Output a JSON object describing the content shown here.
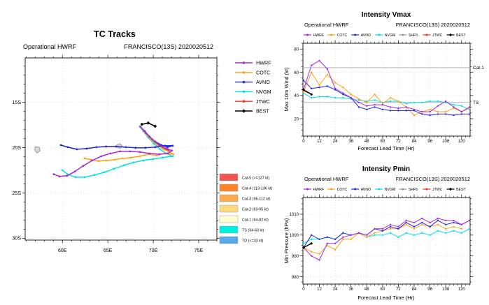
{
  "map": {
    "title": "TC Tracks",
    "subtitle_left": "Operational HWRF",
    "subtitle_right": "FRANCISCO(13S) 2020020512",
    "xlim": [
      55.9,
      77.0
    ],
    "ylim": [
      -30.2,
      -10.1
    ],
    "xticks": [
      {
        "v": 60,
        "label": "60E"
      },
      {
        "v": 65,
        "label": "65E"
      },
      {
        "v": 70,
        "label": "70E"
      },
      {
        "v": 75,
        "label": "75E"
      }
    ],
    "yticks": [
      {
        "v": -15,
        "label": "15S"
      },
      {
        "v": -20,
        "label": "20S"
      },
      {
        "v": -25,
        "label": "25S"
      },
      {
        "v": -30,
        "label": "30S"
      }
    ],
    "legend": [
      {
        "name": "HWRF",
        "color": "#a32cdb"
      },
      {
        "name": "COTC",
        "color": "#ffa217"
      },
      {
        "name": "AVNO",
        "color": "#2525dd"
      },
      {
        "name": "NVGM",
        "color": "#00e0e8"
      },
      {
        "name": "JTWC",
        "color": "#ee3224"
      },
      {
        "name": "BEST",
        "color": "#000000"
      }
    ],
    "categories": [
      {
        "label": "Cat-5 (>=137 kt)",
        "color": "#f2544e"
      },
      {
        "label": "Cat-4 (113-136 kt)",
        "color": "#ff8229"
      },
      {
        "label": "Cat-3 (96-112 kt)",
        "color": "#ffa94e"
      },
      {
        "label": "Cat-2 (83-95 kt)",
        "color": "#fdd87d"
      },
      {
        "label": "Cat-1 (64-82 kt)",
        "color": "#ffffcf"
      },
      {
        "label": "TS (34-63 kt)",
        "color": "#00f0e0"
      },
      {
        "label": "TD (<=33 kt)",
        "color": "#55aaee"
      }
    ],
    "islands": [
      {
        "name": "mauritius",
        "points": [
          [
            57.0,
            -19.9
          ],
          [
            57.45,
            -19.95
          ],
          [
            57.55,
            -20.35
          ],
          [
            57.2,
            -20.6
          ],
          [
            56.95,
            -20.25
          ]
        ]
      },
      {
        "name": "shoal",
        "points": [
          [
            66.0,
            -19.7
          ],
          [
            66.35,
            -19.55
          ],
          [
            66.6,
            -19.85
          ],
          [
            66.35,
            -20.1
          ],
          [
            66.0,
            -19.95
          ]
        ]
      }
    ],
    "tracks": [
      {
        "name": "HWRF",
        "color": "#a32cdb",
        "points": [
          [
            68.59,
            -17.72
          ],
          [
            69.21,
            -18.41
          ],
          [
            69.9,
            -19.1
          ],
          [
            70.67,
            -19.72
          ],
          [
            71.44,
            -20.1
          ],
          [
            72.05,
            -20.33
          ],
          [
            71.59,
            -20.64
          ],
          [
            70.67,
            -20.72
          ],
          [
            69.59,
            -20.64
          ],
          [
            68.52,
            -20.48
          ],
          [
            67.44,
            -20.41
          ],
          [
            66.36,
            -20.41
          ],
          [
            65.28,
            -20.64
          ],
          [
            64.28,
            -20.95
          ],
          [
            63.28,
            -21.41
          ],
          [
            62.28,
            -22.02
          ],
          [
            61.36,
            -22.64
          ],
          [
            60.52,
            -23.1
          ],
          [
            59.67,
            -23.17
          ],
          [
            59.05,
            -22.94
          ]
        ]
      },
      {
        "name": "COTC",
        "color": "#ffa217",
        "points": [
          [
            68.59,
            -17.72
          ],
          [
            69.13,
            -18.41
          ],
          [
            69.75,
            -19.1
          ],
          [
            70.44,
            -19.72
          ],
          [
            71.13,
            -20.18
          ],
          [
            71.82,
            -20.48
          ],
          [
            72.21,
            -20.72
          ],
          [
            71.28,
            -20.64
          ],
          [
            70.36,
            -20.87
          ],
          [
            69.44,
            -20.72
          ],
          [
            68.52,
            -20.95
          ],
          [
            67.59,
            -21.1
          ],
          [
            66.67,
            -21.18
          ],
          [
            65.75,
            -21.33
          ],
          [
            64.82,
            -21.41
          ],
          [
            63.98,
            -21.48
          ],
          [
            63.13,
            -21.33
          ],
          [
            62.44,
            -21.18
          ]
        ]
      },
      {
        "name": "AVNO",
        "color": "#2525dd",
        "points": [
          [
            68.59,
            -17.72
          ],
          [
            69.05,
            -18.18
          ],
          [
            69.59,
            -18.79
          ],
          [
            70.21,
            -19.33
          ],
          [
            70.9,
            -19.72
          ],
          [
            71.59,
            -19.95
          ],
          [
            72.13,
            -19.79
          ],
          [
            71.28,
            -19.79
          ],
          [
            70.21,
            -19.95
          ],
          [
            69.13,
            -20.02
          ],
          [
            68.05,
            -20.02
          ],
          [
            66.98,
            -19.95
          ],
          [
            65.9,
            -19.87
          ],
          [
            64.82,
            -19.87
          ],
          [
            63.75,
            -19.95
          ],
          [
            62.67,
            -20.1
          ],
          [
            61.59,
            -20.18
          ],
          [
            60.59,
            -19.95
          ],
          [
            59.82,
            -19.72
          ]
        ]
      },
      {
        "name": "NVGM",
        "color": "#00e0e8",
        "points": [
          [
            68.52,
            -17.64
          ],
          [
            68.9,
            -18.18
          ],
          [
            69.44,
            -18.87
          ],
          [
            70.05,
            -19.56
          ],
          [
            70.75,
            -20.18
          ],
          [
            71.44,
            -20.64
          ],
          [
            72.13,
            -20.95
          ],
          [
            71.05,
            -21.1
          ],
          [
            69.98,
            -21.26
          ],
          [
            68.9,
            -21.41
          ],
          [
            67.82,
            -21.64
          ],
          [
            66.75,
            -21.95
          ],
          [
            65.67,
            -22.33
          ],
          [
            64.59,
            -22.72
          ],
          [
            63.52,
            -23.02
          ],
          [
            62.44,
            -23.26
          ],
          [
            61.44,
            -23.26
          ],
          [
            60.59,
            -22.95
          ],
          [
            59.98,
            -22.48
          ]
        ]
      },
      {
        "name": "JTWC",
        "color": "#ee3224",
        "points": [
          [
            68.59,
            -17.72
          ],
          [
            69.36,
            -18.64
          ],
          [
            70.21,
            -19.49
          ],
          [
            70.98,
            -20.02
          ],
          [
            71.67,
            -20.33
          ]
        ]
      },
      {
        "name": "BEST",
        "color": "#000000",
        "points": [
          [
            68.75,
            -17.42
          ],
          [
            69.44,
            -17.28
          ],
          [
            70.21,
            -17.64
          ]
        ]
      }
    ]
  },
  "chart_data": [
    {
      "id": "vmax",
      "type": "line",
      "title": "Intensity Vmax",
      "subtitle_left": "Operational HWRF",
      "subtitle_right": "FRANCISCO(13S) 2020020512",
      "xlabel": "Forecast Lead Time (Hr)",
      "ylabel": "Max 10m Wind (kt)",
      "xlim": [
        -0.5,
        126.5
      ],
      "ylim": [
        5,
        85
      ],
      "xminor": 3,
      "yminor": 5,
      "xticks": [
        {
          "v": 0,
          "label": "0"
        },
        {
          "v": 12,
          "label": "12"
        },
        {
          "v": 24,
          "label": "24"
        },
        {
          "v": 36,
          "label": "36"
        },
        {
          "v": 48,
          "label": "48"
        },
        {
          "v": 60,
          "label": "60"
        },
        {
          "v": 72,
          "label": "72"
        },
        {
          "v": 84,
          "label": "84"
        },
        {
          "v": 96,
          "label": "96"
        },
        {
          "v": 108,
          "label": "108"
        },
        {
          "v": 120,
          "label": "120"
        }
      ],
      "yticks": [
        {
          "v": 20,
          "label": "20"
        },
        {
          "v": 40,
          "label": "40"
        },
        {
          "v": 60,
          "label": "60"
        },
        {
          "v": 80,
          "label": "80"
        }
      ],
      "ref_lines": [
        {
          "value": 64,
          "label": "Cat-1"
        },
        {
          "value": 34,
          "label": "TS"
        }
      ],
      "x": [
        0,
        6,
        12,
        18,
        24,
        30,
        36,
        42,
        48,
        54,
        60,
        66,
        72,
        78,
        84,
        90,
        96,
        102,
        108,
        114,
        120,
        126
      ],
      "series": [
        {
          "name": "HWRF",
          "color": "#a32cdb",
          "values": [
            45,
            66,
            70,
            63,
            46,
            42,
            38,
            34,
            31,
            32,
            32,
            30,
            29,
            30,
            28,
            26,
            26,
            31,
            35,
            30,
            26,
            30
          ]
        },
        {
          "name": "COTC",
          "color": "#ffa217",
          "values": [
            43,
            60,
            49,
            58,
            51,
            47,
            41,
            37,
            34,
            41,
            33,
            38,
            35,
            30,
            23,
            26,
            28,
            26,
            26,
            29,
            26,
            29
          ]
        },
        {
          "name": "AVNO",
          "color": "#2525dd",
          "values": [
            53,
            46,
            47,
            48,
            45,
            41,
            38,
            30,
            28,
            30,
            28,
            27,
            27,
            27,
            27,
            24,
            23,
            24,
            24,
            23,
            24,
            24
          ]
        },
        {
          "name": "NVGM",
          "color": "#00e0e8",
          "values": [
            42,
            38,
            39,
            39,
            38,
            38,
            37,
            36,
            35,
            36,
            34,
            35,
            35,
            33,
            34,
            34,
            35,
            35,
            34,
            32,
            31,
            28
          ]
        },
        {
          "name": "SHF5",
          "color": "#999999",
          "values": []
        },
        {
          "name": "JTWC",
          "color": "#ee3224",
          "values": [
            44,
            41
          ]
        },
        {
          "name": "BEST",
          "color": "#000000",
          "values": [
            45,
            41
          ]
        }
      ]
    },
    {
      "id": "pmin",
      "type": "line",
      "title": "Intensity Pmin",
      "subtitle_left": "Operational HWRF",
      "subtitle_right": "FRANCISCO(13S) 2020020512",
      "xlabel": "Forecast Lead Time (Hr)",
      "ylabel": "Min Pressure (hPa)",
      "xlim": [
        -0.5,
        126.5
      ],
      "ylim": [
        976.5,
        1018
      ],
      "xminor": 3,
      "yminor": 2.5,
      "xticks": [
        {
          "v": 0,
          "label": "0"
        },
        {
          "v": 12,
          "label": "12"
        },
        {
          "v": 24,
          "label": "24"
        },
        {
          "v": 36,
          "label": "36"
        },
        {
          "v": 48,
          "label": "48"
        },
        {
          "v": 60,
          "label": "60"
        },
        {
          "v": 72,
          "label": "72"
        },
        {
          "v": 84,
          "label": "84"
        },
        {
          "v": 96,
          "label": "96"
        },
        {
          "v": 108,
          "label": "108"
        },
        {
          "v": 120,
          "label": "120"
        }
      ],
      "yticks": [
        {
          "v": 980,
          "label": "980"
        },
        {
          "v": 990,
          "label": "990"
        },
        {
          "v": 1000,
          "label": "1000"
        },
        {
          "v": 1010,
          "label": "1010"
        }
      ],
      "ref_lines": [],
      "x": [
        0,
        6,
        12,
        18,
        24,
        30,
        36,
        42,
        48,
        54,
        60,
        66,
        72,
        78,
        84,
        90,
        96,
        102,
        108,
        114,
        120,
        126
      ],
      "series": [
        {
          "name": "HWRF",
          "color": "#a32cdb",
          "values": [
            994,
            990,
            988,
            996,
            996,
            999,
            1000,
            1001,
            1000,
            1003,
            1003,
            1005,
            1004,
            1007,
            1006,
            1008,
            1006,
            1008,
            1007,
            1007,
            1005,
            1007
          ]
        },
        {
          "name": "COTC",
          "color": "#ffa217",
          "values": [
            994,
            992,
            991,
            995,
            993,
            998,
            998,
            1001,
            999,
            1001,
            1002,
            1003,
            1003,
            1005,
            1003,
            1005,
            1004,
            1005,
            1003,
            1004,
            1003
          ]
        },
        {
          "name": "AVNO",
          "color": "#2525dd",
          "values": [
            994,
            1000,
            998,
            999,
            998,
            1001,
            1000,
            1001,
            1000,
            1003,
            1002,
            1004,
            1003,
            1006,
            1004,
            1006,
            1004,
            1007,
            1005,
            1006,
            1005,
            1007
          ]
        },
        {
          "name": "NVGM",
          "color": "#00e0e8",
          "values": [
            996,
            998,
            998,
            999,
            998,
            1001,
            1000,
            1001,
            999,
            1000,
            1000,
            1001,
            999,
            1001,
            1000,
            1001,
            1000,
            1002,
            1001,
            1002,
            1001,
            1003
          ]
        },
        {
          "name": "SHF5",
          "color": "#999999",
          "values": []
        },
        {
          "name": "JTWC",
          "color": "#ee3224",
          "values": []
        },
        {
          "name": "BEST",
          "color": "#000000",
          "values": [
            994,
            996
          ]
        }
      ]
    }
  ]
}
